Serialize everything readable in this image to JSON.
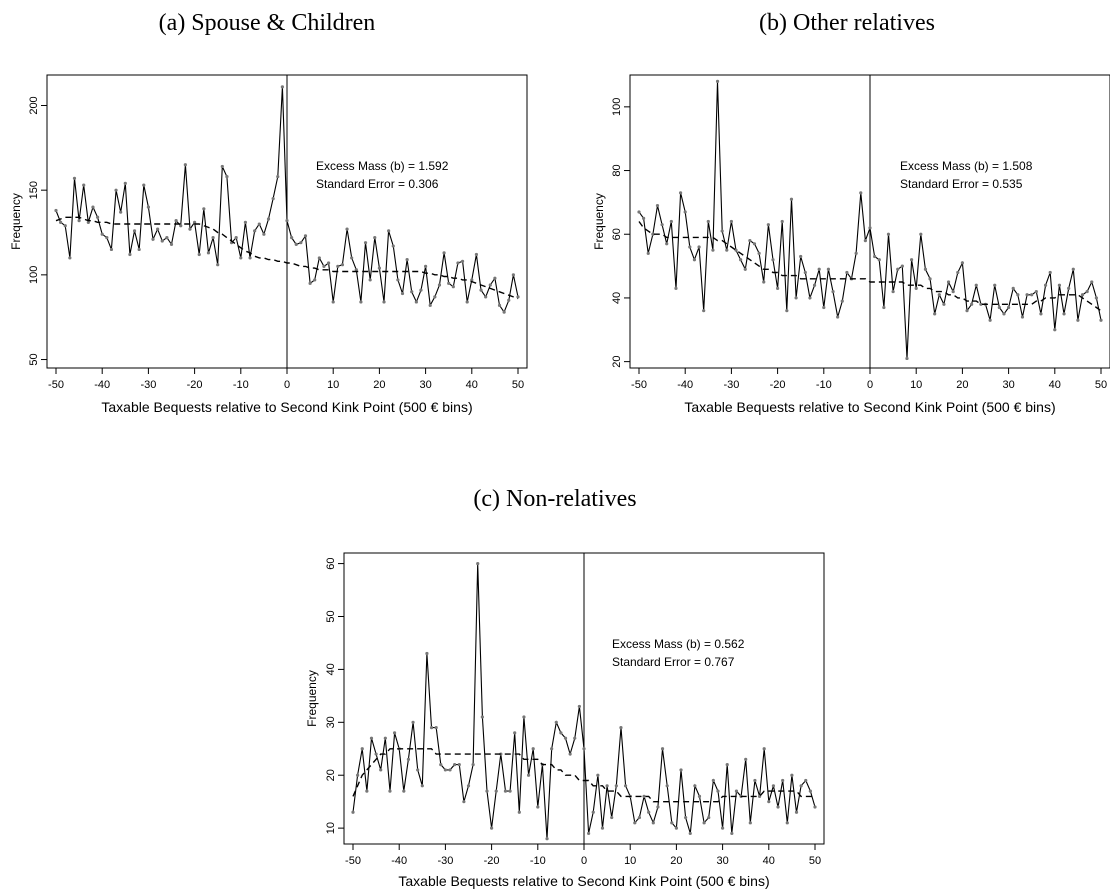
{
  "chart_data": [
    {
      "type": "line",
      "panel_title": "(a) Spouse & Children",
      "xlabel": "Taxable Bequests relative to Second Kink Point (500 € bins)",
      "ylabel": "Frequency",
      "xlim": [
        -50,
        50
      ],
      "ylim": [
        45,
        218
      ],
      "xticks": [
        -50,
        -40,
        -30,
        -20,
        -10,
        0,
        10,
        20,
        30,
        40,
        50
      ],
      "yticks": [
        50,
        100,
        150,
        200
      ],
      "annotations": [
        "Excess Mass (b) = 1.592",
        "Standard Error = 0.306"
      ],
      "vline_x": 0,
      "x": [
        -50,
        -49,
        -48,
        -47,
        -46,
        -45,
        -44,
        -43,
        -42,
        -41,
        -40,
        -39,
        -38,
        -37,
        -36,
        -35,
        -34,
        -33,
        -32,
        -31,
        -30,
        -29,
        -28,
        -27,
        -26,
        -25,
        -24,
        -23,
        -22,
        -21,
        -20,
        -19,
        -18,
        -17,
        -16,
        -15,
        -14,
        -13,
        -12,
        -11,
        -10,
        -9,
        -8,
        -7,
        -6,
        -5,
        -4,
        -3,
        -2,
        -1,
        0,
        1,
        2,
        3,
        4,
        5,
        6,
        7,
        8,
        9,
        10,
        11,
        12,
        13,
        14,
        15,
        16,
        17,
        18,
        19,
        20,
        21,
        22,
        23,
        24,
        25,
        26,
        27,
        28,
        29,
        30,
        31,
        32,
        33,
        34,
        35,
        36,
        37,
        38,
        39,
        40,
        41,
        42,
        43,
        44,
        45,
        46,
        47,
        48,
        49,
        50
      ],
      "series": [
        {
          "style": "observed",
          "values": [
            138,
            131,
            129,
            110,
            157,
            132,
            153,
            131,
            140,
            134,
            124,
            122,
            115,
            150,
            137,
            154,
            112,
            126,
            115,
            153,
            140,
            121,
            127,
            120,
            122,
            118,
            132,
            129,
            165,
            127,
            131,
            112,
            139,
            113,
            122,
            106,
            164,
            158,
            119,
            122,
            110,
            131,
            110,
            126,
            130,
            124,
            133,
            145,
            158,
            211,
            132,
            122,
            118,
            119,
            123,
            95,
            97,
            110,
            105,
            107,
            84,
            105,
            106,
            127,
            110,
            103,
            84,
            119,
            97,
            122,
            104,
            84,
            126,
            117,
            97,
            89,
            109,
            90,
            84,
            91,
            105,
            82,
            87,
            94,
            113,
            95,
            93,
            107,
            108,
            84,
            97,
            112,
            91,
            87,
            94,
            98,
            82,
            78,
            85,
            100,
            87
          ]
        },
        {
          "style": "counterfactual",
          "values": [
            132,
            133,
            134,
            134,
            134,
            134,
            133,
            132,
            132,
            131,
            131,
            131,
            130,
            130,
            130,
            130,
            130,
            130,
            130,
            130,
            130,
            130,
            130,
            130,
            130,
            130,
            130,
            130,
            130,
            130,
            130,
            130,
            129,
            128,
            127,
            125,
            124,
            122,
            120,
            118,
            116,
            114,
            113,
            111,
            110,
            110,
            109,
            109,
            108,
            108,
            107,
            107,
            106,
            105,
            105,
            104,
            104,
            103,
            103,
            103,
            102,
            102,
            102,
            102,
            102,
            102,
            102,
            102,
            102,
            102,
            102,
            102,
            102,
            102,
            102,
            102,
            102,
            102,
            102,
            102,
            101,
            101,
            100,
            100,
            99,
            99,
            98,
            98,
            97,
            97,
            96,
            95,
            94,
            93,
            92,
            91,
            90,
            89,
            88,
            87,
            86
          ]
        }
      ]
    },
    {
      "type": "line",
      "panel_title": "(b) Other relatives",
      "xlabel": "Taxable Bequests relative to Second Kink Point (500 € bins)",
      "ylabel": "Frequency",
      "xlim": [
        -50,
        50
      ],
      "ylim": [
        18,
        110
      ],
      "xticks": [
        -50,
        -40,
        -30,
        -20,
        -10,
        0,
        10,
        20,
        30,
        40,
        50
      ],
      "yticks": [
        20,
        40,
        60,
        80,
        100
      ],
      "annotations": [
        "Excess Mass (b) = 1.508",
        "Standard Error = 0.535"
      ],
      "vline_x": 0,
      "x": [
        -50,
        -49,
        -48,
        -47,
        -46,
        -45,
        -44,
        -43,
        -42,
        -41,
        -40,
        -39,
        -38,
        -37,
        -36,
        -35,
        -34,
        -33,
        -32,
        -31,
        -30,
        -29,
        -28,
        -27,
        -26,
        -25,
        -24,
        -23,
        -22,
        -21,
        -20,
        -19,
        -18,
        -17,
        -16,
        -15,
        -14,
        -13,
        -12,
        -11,
        -10,
        -9,
        -8,
        -7,
        -6,
        -5,
        -4,
        -3,
        -2,
        -1,
        0,
        1,
        2,
        3,
        4,
        5,
        6,
        7,
        8,
        9,
        10,
        11,
        12,
        13,
        14,
        15,
        16,
        17,
        18,
        19,
        20,
        21,
        22,
        23,
        24,
        25,
        26,
        27,
        28,
        29,
        30,
        31,
        32,
        33,
        34,
        35,
        36,
        37,
        38,
        39,
        40,
        41,
        42,
        43,
        44,
        45,
        46,
        47,
        48,
        49,
        50
      ],
      "series": [
        {
          "style": "observed",
          "values": [
            67,
            65,
            54,
            60,
            69,
            63,
            57,
            64,
            43,
            73,
            67,
            56,
            52,
            56,
            36,
            64,
            55,
            108,
            61,
            55,
            64,
            55,
            52,
            49,
            58,
            57,
            54,
            45,
            63,
            52,
            43,
            64,
            36,
            71,
            40,
            53,
            48,
            40,
            44,
            49,
            37,
            49,
            42,
            34,
            39,
            48,
            46,
            54,
            73,
            58,
            62,
            53,
            52,
            37,
            60,
            42,
            49,
            50,
            21,
            52,
            43,
            60,
            49,
            46,
            35,
            41,
            38,
            45,
            42,
            48,
            51,
            36,
            38,
            44,
            38,
            38,
            33,
            44,
            37,
            35,
            37,
            43,
            41,
            34,
            41,
            41,
            42,
            35,
            44,
            48,
            30,
            44,
            35,
            43,
            49,
            33,
            41,
            42,
            45,
            40,
            33
          ]
        },
        {
          "style": "counterfactual",
          "values": [
            64,
            62,
            61,
            60,
            60,
            60,
            59,
            59,
            59,
            59,
            59,
            59,
            59,
            59,
            59,
            59,
            59,
            58,
            58,
            57,
            56,
            55,
            54,
            53,
            52,
            51,
            50,
            49,
            49,
            48,
            48,
            47,
            47,
            47,
            47,
            46,
            46,
            46,
            46,
            46,
            46,
            46,
            46,
            46,
            46,
            46,
            46,
            46,
            46,
            46,
            45,
            45,
            45,
            45,
            45,
            45,
            45,
            45,
            44,
            44,
            44,
            44,
            43,
            43,
            42,
            42,
            42,
            41,
            41,
            40,
            40,
            39,
            39,
            39,
            38,
            38,
            38,
            38,
            38,
            38,
            38,
            38,
            38,
            38,
            38,
            38,
            39,
            39,
            40,
            40,
            40,
            41,
            41,
            41,
            41,
            41,
            40,
            39,
            38,
            37,
            36
          ]
        }
      ]
    },
    {
      "type": "line",
      "panel_title": "(c) Non-relatives",
      "xlabel": "Taxable Bequests relative to Second Kink Point (500 € bins)",
      "ylabel": "Frequency",
      "xlim": [
        -50,
        50
      ],
      "ylim": [
        7,
        62
      ],
      "xticks": [
        -50,
        -40,
        -30,
        -20,
        -10,
        0,
        10,
        20,
        30,
        40,
        50
      ],
      "yticks": [
        10,
        20,
        30,
        40,
        50,
        60
      ],
      "annotations": [
        "Excess Mass (b) = 0.562",
        "Standard Error = 0.767"
      ],
      "vline_x": 0,
      "x": [
        -50,
        -49,
        -48,
        -47,
        -46,
        -45,
        -44,
        -43,
        -42,
        -41,
        -40,
        -39,
        -38,
        -37,
        -36,
        -35,
        -34,
        -33,
        -32,
        -31,
        -30,
        -29,
        -28,
        -27,
        -26,
        -25,
        -24,
        -23,
        -22,
        -21,
        -20,
        -19,
        -18,
        -17,
        -16,
        -15,
        -14,
        -13,
        -12,
        -11,
        -10,
        -9,
        -8,
        -7,
        -6,
        -5,
        -4,
        -3,
        -2,
        -1,
        0,
        1,
        2,
        3,
        4,
        5,
        6,
        7,
        8,
        9,
        10,
        11,
        12,
        13,
        14,
        15,
        16,
        17,
        18,
        19,
        20,
        21,
        22,
        23,
        24,
        25,
        26,
        27,
        28,
        29,
        30,
        31,
        32,
        33,
        34,
        35,
        36,
        37,
        38,
        39,
        40,
        41,
        42,
        43,
        44,
        45,
        46,
        47,
        48,
        49,
        50
      ],
      "series": [
        {
          "style": "observed",
          "values": [
            13,
            20,
            25,
            17,
            27,
            24,
            21,
            27,
            17,
            28,
            25,
            17,
            23,
            30,
            21,
            18,
            43,
            29,
            29,
            22,
            21,
            21,
            22,
            22,
            15,
            18,
            22,
            60,
            31,
            17,
            10,
            17,
            24,
            17,
            17,
            28,
            13,
            31,
            20,
            25,
            14,
            22,
            8,
            25,
            30,
            28,
            27,
            24,
            27,
            33,
            25,
            9,
            13,
            20,
            10,
            18,
            12,
            18,
            29,
            18,
            16,
            11,
            12,
            16,
            13,
            11,
            14,
            25,
            18,
            11,
            10,
            21,
            12,
            9,
            18,
            16,
            11,
            12,
            19,
            17,
            10,
            22,
            9,
            17,
            16,
            23,
            11,
            19,
            16,
            25,
            15,
            18,
            14,
            19,
            11,
            20,
            13,
            18,
            19,
            17,
            14
          ]
        },
        {
          "style": "counterfactual",
          "values": [
            16,
            18,
            20,
            21,
            22,
            23,
            24,
            24,
            25,
            25,
            25,
            25,
            25,
            25,
            25,
            25,
            25,
            25,
            24,
            24,
            24,
            24,
            24,
            24,
            24,
            24,
            24,
            24,
            24,
            24,
            24,
            24,
            24,
            24,
            24,
            24,
            24,
            23,
            23,
            23,
            23,
            22,
            22,
            22,
            21,
            21,
            20,
            20,
            20,
            19,
            19,
            19,
            18,
            18,
            18,
            17,
            17,
            17,
            16,
            16,
            16,
            16,
            16,
            16,
            16,
            15,
            15,
            15,
            15,
            15,
            15,
            15,
            15,
            15,
            15,
            15,
            15,
            15,
            15,
            15,
            16,
            16,
            16,
            16,
            16,
            16,
            16,
            16,
            16,
            17,
            17,
            17,
            17,
            17,
            17,
            17,
            17,
            16,
            16,
            16,
            16
          ]
        }
      ]
    }
  ]
}
